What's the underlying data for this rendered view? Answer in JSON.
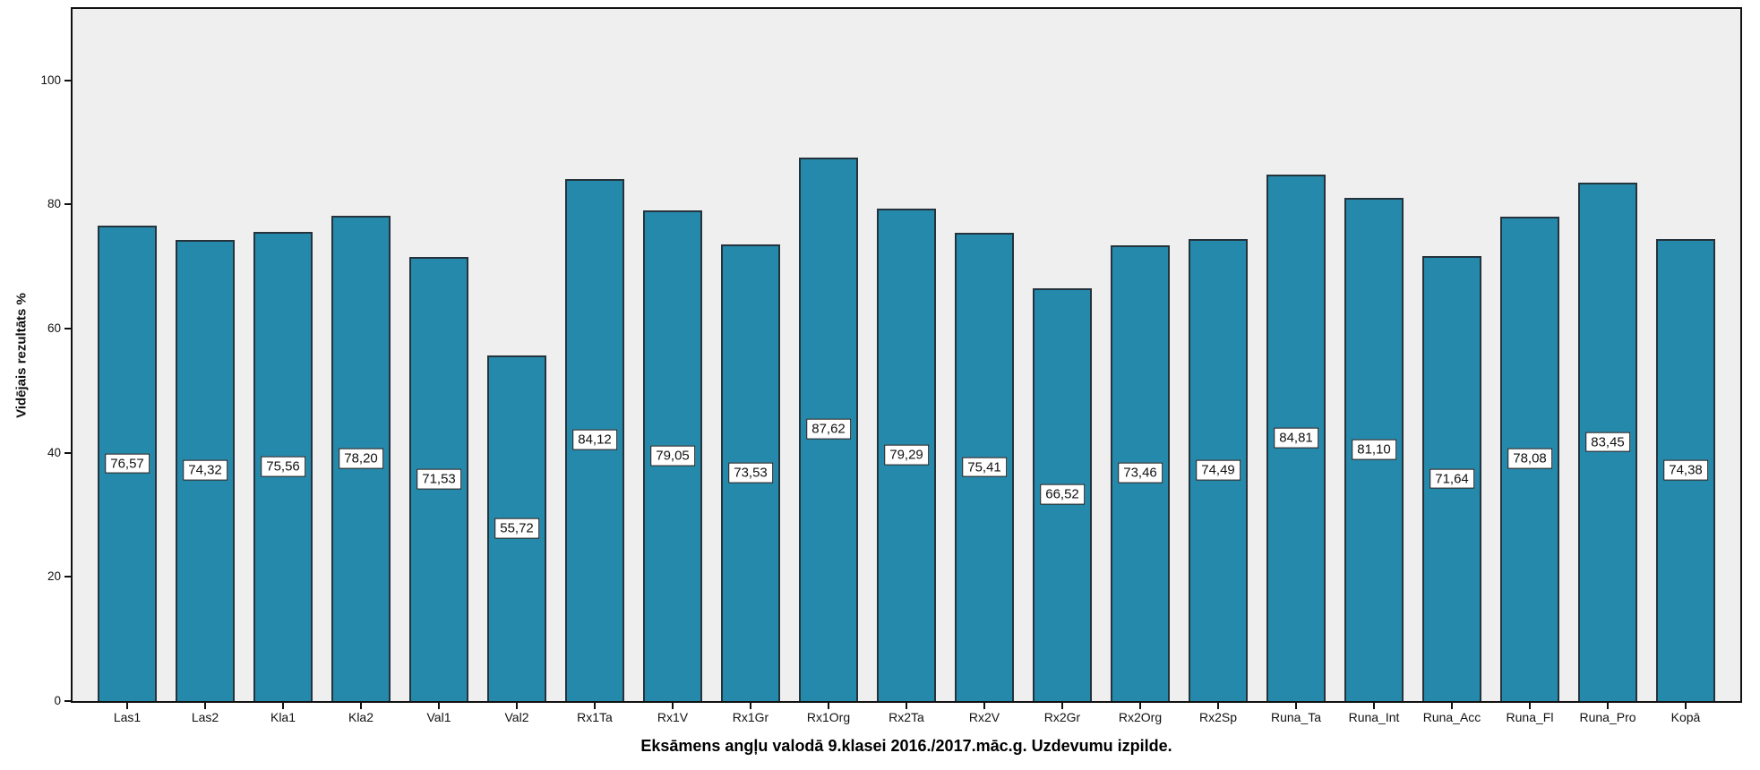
{
  "figure": {
    "title": "Eksāmens angļu valodā 9.klasei 2016./2017.māc.g. Uzdevumu izpilde.",
    "y_axis_title": "Vidējais rezultāts %"
  },
  "chart_data": {
    "type": "bar",
    "title": "Eksāmens angļu valodā 9.klasei 2016./2017.māc.g. Uzdevumu izpilde.",
    "xlabel": "",
    "ylabel": "Vidējais rezultāts %",
    "categories": [
      "Las1",
      "Las2",
      "Kla1",
      "Kla2",
      "Val1",
      "Val2",
      "Rx1Ta",
      "Rx1V",
      "Rx1Gr",
      "Rx1Org",
      "Rx2Ta",
      "Rx2V",
      "Rx2Gr",
      "Rx2Org",
      "Rx2Sp",
      "Runa_Ta",
      "Runa_Int",
      "Runa_Acc",
      "Runa_Fl",
      "Runa_Pro",
      "Kopā"
    ],
    "values": [
      76.57,
      74.32,
      75.56,
      78.2,
      71.53,
      55.72,
      84.12,
      79.05,
      73.53,
      87.62,
      79.29,
      75.41,
      66.52,
      73.46,
      74.49,
      84.81,
      81.1,
      71.64,
      78.08,
      83.45,
      74.38
    ],
    "value_labels": [
      "76,57",
      "74,32",
      "75,56",
      "78,20",
      "71,53",
      "55,72",
      "84,12",
      "79,05",
      "73,53",
      "87,62",
      "79,29",
      "75,41",
      "66,52",
      "73,46",
      "74,49",
      "84,81",
      "81,10",
      "71,64",
      "78,08",
      "83,45",
      "74,38"
    ],
    "ylim": [
      0,
      111.5
    ],
    "yticks": [
      0,
      20,
      40,
      60,
      80,
      100
    ],
    "grid": false,
    "legend": null,
    "value_labels_position": "center-of-bar-in-white-box",
    "colors": {
      "bar_fill": "#2589AC",
      "bar_edge": "#25333C",
      "plot_background": "#EFEFEF",
      "frame_border": "#111111",
      "label_box_background": "#FFFFFF",
      "label_box_border": "#111111",
      "tick_color": "#111111",
      "outer_background": "#FFFFFF"
    }
  }
}
